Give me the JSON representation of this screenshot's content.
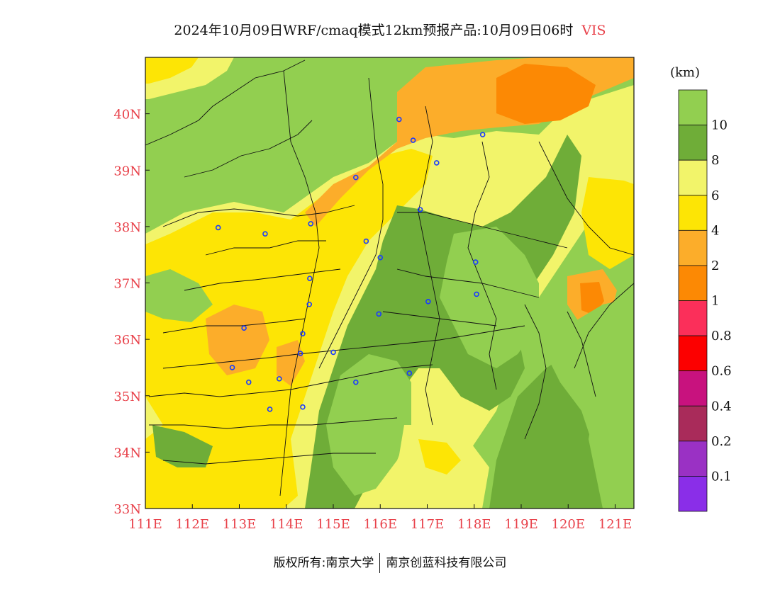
{
  "title": {
    "main": "2024年10月09日WRF/cmaq模式12km预报产品:10月09日06时",
    "variable": "VIS"
  },
  "map": {
    "x_axis_labels": [
      "111E",
      "112E",
      "113E",
      "114E",
      "115E",
      "116E",
      "117E",
      "118E",
      "119E",
      "120E",
      "121E"
    ],
    "y_axis_labels": [
      "33N",
      "34N",
      "35N",
      "36N",
      "37N",
      "38N",
      "39N",
      "40N"
    ],
    "lon_range": [
      111,
      121.4
    ],
    "lat_range": [
      33,
      41
    ],
    "colors": {
      "c10": "#92cf50",
      "c8": "#6fad38",
      "c6": "#f2f46a",
      "c4": "#fde505",
      "c2": "#fcad2a",
      "c1": "#fc8904",
      "c08": "#fb2f5a",
      "c06": "#fc0000",
      "c04": "#c8127e",
      "c02": "#a92b5a",
      "c01": "#9a31c4",
      "c00": "#8a2ee8"
    },
    "cities": [
      {
        "lon": 112.55,
        "lat": 37.98
      },
      {
        "lon": 113.55,
        "lat": 37.87
      },
      {
        "lon": 114.52,
        "lat": 38.05
      },
      {
        "lon": 114.5,
        "lat": 37.08
      },
      {
        "lon": 114.49,
        "lat": 36.62
      },
      {
        "lon": 114.35,
        "lat": 36.1
      },
      {
        "lon": 114.3,
        "lat": 35.75
      },
      {
        "lon": 113.85,
        "lat": 35.3
      },
      {
        "lon": 113.2,
        "lat": 35.24
      },
      {
        "lon": 112.85,
        "lat": 35.5
      },
      {
        "lon": 113.1,
        "lat": 36.2
      },
      {
        "lon": 113.65,
        "lat": 34.76
      },
      {
        "lon": 114.35,
        "lat": 34.8
      },
      {
        "lon": 115.0,
        "lat": 35.77
      },
      {
        "lon": 115.48,
        "lat": 35.24
      },
      {
        "lon": 115.97,
        "lat": 36.45
      },
      {
        "lon": 116.0,
        "lat": 37.45
      },
      {
        "lon": 115.7,
        "lat": 37.74
      },
      {
        "lon": 116.62,
        "lat": 35.4
      },
      {
        "lon": 117.02,
        "lat": 36.67
      },
      {
        "lon": 118.05,
        "lat": 36.8
      },
      {
        "lon": 118.03,
        "lat": 37.37
      },
      {
        "lon": 116.85,
        "lat": 38.3
      },
      {
        "lon": 115.48,
        "lat": 38.87
      },
      {
        "lon": 117.2,
        "lat": 39.13
      },
      {
        "lon": 116.7,
        "lat": 39.53
      },
      {
        "lon": 116.4,
        "lat": 39.9
      },
      {
        "lon": 118.18,
        "lat": 39.63
      }
    ]
  },
  "legend": {
    "unit": "(km)",
    "colors": [
      "#92cf50",
      "#6fad38",
      "#f2f46a",
      "#fde505",
      "#fcad2a",
      "#fc8904",
      "#fb2f5a",
      "#fc0000",
      "#c8127e",
      "#a92b5a",
      "#9a31c4",
      "#8a2ee8"
    ],
    "labels": [
      "10",
      "8",
      "6",
      "4",
      "2",
      "1",
      "0.8",
      "0.6",
      "0.4",
      "0.2",
      "0.1"
    ]
  },
  "copyright": {
    "left": "版权所有:南京大学",
    "right": "南京创蓝科技有限公司"
  }
}
